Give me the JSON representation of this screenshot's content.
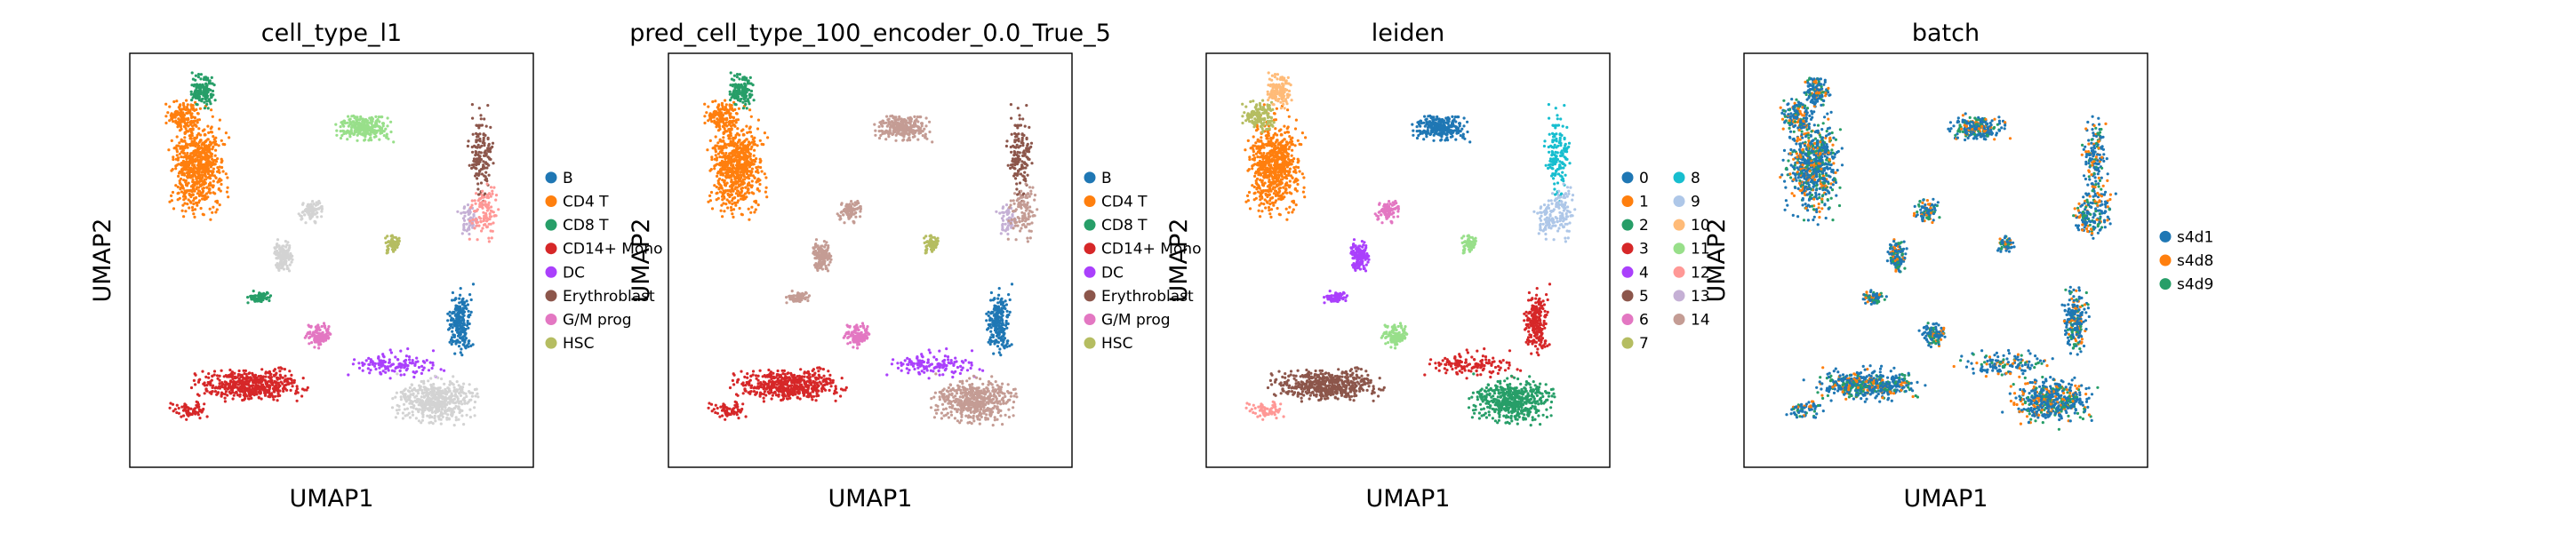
{
  "chart_data": [
    {
      "type": "scatter",
      "title": "cell_type_l1",
      "xlabel": "UMAP1",
      "ylabel": "UMAP2",
      "grid": false,
      "legend_placement": "right",
      "legend": [
        {
          "label": "B",
          "color": "#1f77b4"
        },
        {
          "label": "CD4 T",
          "color": "#ff7f0e"
        },
        {
          "label": "CD8 T",
          "color": "#279e68"
        },
        {
          "label": "CD14+ Mono",
          "color": "#d62728"
        },
        {
          "label": "DC",
          "color": "#aa40fc"
        },
        {
          "label": "Erythroblast",
          "color": "#8c564b"
        },
        {
          "label": "G/M prog",
          "color": "#e377c2"
        },
        {
          "label": "HSC",
          "color": "#b5bd61"
        }
      ]
    },
    {
      "type": "scatter",
      "title": "pred_cell_type_100_encoder_0.0_True_5",
      "xlabel": "UMAP1",
      "ylabel": "UMAP2",
      "grid": false,
      "legend_placement": "right",
      "legend": [
        {
          "label": "B",
          "color": "#1f77b4"
        },
        {
          "label": "CD4 T",
          "color": "#ff7f0e"
        },
        {
          "label": "CD8 T",
          "color": "#279e68"
        },
        {
          "label": "CD14+ Mono",
          "color": "#d62728"
        },
        {
          "label": "DC",
          "color": "#aa40fc"
        },
        {
          "label": "Erythroblast",
          "color": "#8c564b"
        },
        {
          "label": "G/M prog",
          "color": "#e377c2"
        },
        {
          "label": "HSC",
          "color": "#b5bd61"
        }
      ]
    },
    {
      "type": "scatter",
      "title": "leiden",
      "xlabel": "UMAP1",
      "ylabel": "UMAP2",
      "grid": false,
      "legend_placement": "right",
      "legend": [
        {
          "label": "0",
          "color": "#1f77b4"
        },
        {
          "label": "1",
          "color": "#ff7f0e"
        },
        {
          "label": "2",
          "color": "#279e68"
        },
        {
          "label": "3",
          "color": "#d62728"
        },
        {
          "label": "4",
          "color": "#aa40fc"
        },
        {
          "label": "5",
          "color": "#8c564b"
        },
        {
          "label": "6",
          "color": "#e377c2"
        },
        {
          "label": "7",
          "color": "#b5bd61"
        },
        {
          "label": "8",
          "color": "#17becf"
        },
        {
          "label": "9",
          "color": "#aec7e8"
        },
        {
          "label": "10",
          "color": "#ffbb78"
        },
        {
          "label": "11",
          "color": "#98df8a"
        },
        {
          "label": "12",
          "color": "#ff9896"
        },
        {
          "label": "13",
          "color": "#c5b0d5"
        },
        {
          "label": "14",
          "color": "#c49c94"
        }
      ]
    },
    {
      "type": "scatter",
      "title": "batch",
      "xlabel": "UMAP1",
      "ylabel": "UMAP2",
      "grid": false,
      "legend_placement": "right",
      "legend": [
        {
          "label": "s4d1",
          "color": "#1f77b4"
        },
        {
          "label": "s4d8",
          "color": "#ff7f0e"
        },
        {
          "label": "s4d9",
          "color": "#279e68"
        }
      ]
    }
  ]
}
